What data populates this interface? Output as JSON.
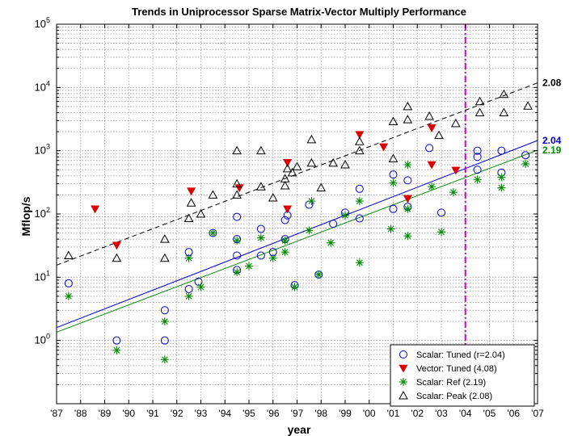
{
  "chart_data": {
    "type": "scatter",
    "title": "Trends in Uniprocessor Sparse Matrix-Vector Multiply Performance",
    "xlabel": "year",
    "ylabel": "Mflop/s",
    "x_scale": "linear",
    "y_scale": "log10",
    "xlim": [
      1987,
      2007
    ],
    "ylim": [
      0.1,
      100000
    ],
    "x_tick_labels": [
      "'87",
      "'88",
      "'89",
      "'90",
      "'91",
      "'92",
      "'93",
      "'94",
      "'95",
      "'96",
      "'97",
      "'98",
      "'99",
      "'00",
      "'01",
      "'02",
      "'03",
      "'04",
      "'05",
      "'06",
      "'07"
    ],
    "y_tick_labels": [
      {
        "base": "10",
        "exp": "0"
      },
      {
        "base": "10",
        "exp": "1"
      },
      {
        "base": "10",
        "exp": "2"
      },
      {
        "base": "10",
        "exp": "3"
      },
      {
        "base": "10",
        "exp": "4"
      },
      {
        "base": "10",
        "exp": "5"
      }
    ],
    "grid": true,
    "legend_position": "bottom-right",
    "vertical_marker": {
      "x": 2004,
      "color": "#cc00cc",
      "style": "dash-dot"
    },
    "series": [
      {
        "name": "Scalar: Tuned (r=2.04)",
        "marker": "circle",
        "color": "#0000cc",
        "points": [
          [
            1987.5,
            8
          ],
          [
            1989.5,
            1
          ],
          [
            1991.5,
            3
          ],
          [
            1991.5,
            1
          ],
          [
            1992.5,
            6.5
          ],
          [
            1992.5,
            25
          ],
          [
            1992.9,
            8.5
          ],
          [
            1993.5,
            50
          ],
          [
            1994.5,
            13
          ],
          [
            1994.5,
            22
          ],
          [
            1994.5,
            90
          ],
          [
            1994.5,
            40
          ],
          [
            1995.5,
            22
          ],
          [
            1995.5,
            58
          ],
          [
            1996,
            25
          ],
          [
            1996.5,
            40
          ],
          [
            1996.5,
            80
          ],
          [
            1996.6,
            95
          ],
          [
            1996.9,
            7.5
          ],
          [
            1997.5,
            140
          ],
          [
            1997.9,
            11
          ],
          [
            1998.5,
            70
          ],
          [
            1999,
            105
          ],
          [
            1999.6,
            85
          ],
          [
            1999.6,
            250
          ],
          [
            2001,
            120
          ],
          [
            2001,
            420
          ],
          [
            2001.6,
            130
          ],
          [
            2001.6,
            340
          ],
          [
            2002.5,
            1100
          ],
          [
            2003,
            105
          ],
          [
            2004.5,
            500
          ],
          [
            2004.5,
            800
          ],
          [
            2004.5,
            1000
          ],
          [
            2005.5,
            450
          ],
          [
            2005.5,
            1000
          ],
          [
            2006.5,
            850
          ]
        ]
      },
      {
        "name": "Vector: Tuned (4.08)",
        "marker": "triangle-down",
        "color": "#dd0000",
        "points": [
          [
            1988.6,
            120
          ],
          [
            1989.5,
            32
          ],
          [
            1992.6,
            230
          ],
          [
            1994.6,
            260
          ],
          [
            1996.6,
            650
          ],
          [
            1996.6,
            120
          ],
          [
            1999.6,
            1800
          ],
          [
            2000.6,
            1150
          ],
          [
            2001.6,
            175
          ],
          [
            2002.6,
            2300
          ],
          [
            2002.6,
            600
          ],
          [
            2003.6,
            490
          ]
        ]
      },
      {
        "name": "Scalar: Ref (2.19)",
        "marker": "asterisk",
        "color": "#008800",
        "points": [
          [
            1987.5,
            5
          ],
          [
            1989.5,
            0.7
          ],
          [
            1991.5,
            2
          ],
          [
            1991.5,
            0.5
          ],
          [
            1992.5,
            5
          ],
          [
            1992.5,
            20
          ],
          [
            1993,
            7
          ],
          [
            1993.5,
            50
          ],
          [
            1994.5,
            12
          ],
          [
            1994.5,
            38
          ],
          [
            1995,
            15
          ],
          [
            1995.5,
            42
          ],
          [
            1996,
            20
          ],
          [
            1996.5,
            25
          ],
          [
            1996.5,
            38
          ],
          [
            1996.9,
            7
          ],
          [
            1997.5,
            55
          ],
          [
            1997.6,
            160
          ],
          [
            1997.9,
            11
          ],
          [
            1998.4,
            35
          ],
          [
            1999,
            95
          ],
          [
            1999.6,
            17
          ],
          [
            1999.6,
            160
          ],
          [
            2000.9,
            58
          ],
          [
            2001,
            310
          ],
          [
            2001.6,
            45
          ],
          [
            2001.6,
            120
          ],
          [
            2001.6,
            600
          ],
          [
            2002.6,
            270
          ],
          [
            2003,
            52
          ],
          [
            2003.5,
            220
          ],
          [
            2004.5,
            350
          ],
          [
            2005.5,
            260
          ],
          [
            2005.5,
            380
          ],
          [
            2006.5,
            620
          ]
        ]
      },
      {
        "name": "Scalar: Peak (2.08)",
        "marker": "triangle-up",
        "color": "#000000",
        "points": [
          [
            1987.5,
            22
          ],
          [
            1989.5,
            20
          ],
          [
            1991.5,
            40
          ],
          [
            1991.5,
            20
          ],
          [
            1992.5,
            85
          ],
          [
            1992.6,
            150
          ],
          [
            1993,
            100
          ],
          [
            1993.5,
            200
          ],
          [
            1994.5,
            300
          ],
          [
            1994.5,
            1000
          ],
          [
            1994.5,
            200
          ],
          [
            1995.5,
            270
          ],
          [
            1995.5,
            1000
          ],
          [
            1996,
            180
          ],
          [
            1996.5,
            360
          ],
          [
            1996.5,
            280
          ],
          [
            1996.6,
            520
          ],
          [
            1996.8,
            450
          ],
          [
            1997,
            560
          ],
          [
            1997.6,
            1500
          ],
          [
            1997.6,
            640
          ],
          [
            1998,
            260
          ],
          [
            1998.5,
            640
          ],
          [
            1999,
            600
          ],
          [
            1999.6,
            1000
          ],
          [
            1999.6,
            1400
          ],
          [
            2001,
            750
          ],
          [
            2001,
            2900
          ],
          [
            2001.6,
            5000
          ],
          [
            2001.6,
            3100
          ],
          [
            2002.5,
            3500
          ],
          [
            2002.9,
            1750
          ],
          [
            2003.6,
            2700
          ],
          [
            2004.6,
            6000
          ],
          [
            2004.6,
            4000
          ],
          [
            2005.6,
            7800
          ],
          [
            2005.6,
            4000
          ],
          [
            2006.6,
            5100
          ]
        ]
      }
    ],
    "trend_lines": [
      {
        "label": "2.04",
        "color": "#0000cc",
        "style": "solid",
        "x": [
          1987,
          2007
        ],
        "y": [
          1.6,
          1450
        ]
      },
      {
        "label": "2.19",
        "color": "#008800",
        "style": "solid",
        "x": [
          1987,
          2007
        ],
        "y": [
          1.35,
          1020
        ]
      },
      {
        "label": "2.08",
        "color": "#000000",
        "style": "dashed",
        "x": [
          1987,
          2007
        ],
        "y": [
          15.5,
          11800
        ]
      }
    ]
  }
}
